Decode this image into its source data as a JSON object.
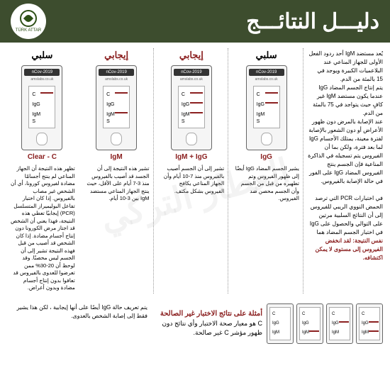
{
  "watermark": "العطار التركي",
  "header": {
    "title": "دليـــل النتائـــج",
    "logo_top": "العطار التركي",
    "logo_bottom": "TÜRK ATTAR"
  },
  "intro": {
    "p1": "يُعد مستضد IgM أحد ردود الفعل الأولى للجهاز المناعي عند البلاعميات الكبيرة ويوجد في 15 بالمئة من الدم.",
    "p2": "يتم إنتاج الجسم المضاد IgG عندما يكون مستضد IgM غير كافٍ حيث يتواجد في 75 بالمئة من الدم.",
    "p3": "عند الإصابة بالمرض دون ظهور الأعراض أو دون الشعور بالإصابة لفترة معينة، يمتلك الأجسام IgG لما بعد فترة، ولكن بما أن الفيروس يتم تسجيله في الذاكرة المناعية فإن الجسم ينتج الفيروس المضاد IgG على الفور في حالة الإصابة بالفيروس.",
    "p4": "في اختبارات PCR التي ترصد الحمض النووي الريبي للفيروس إلى أن النتائج السلبية مرتين على التوالي والحصول على IgG في اختبار الجسم المضاد هما",
    "p5": "نفس النتيجة: لقد انخفض الفيروس إلى مستوى لا يمكن اكتشافه."
  },
  "columns": [
    {
      "header": "سلبي",
      "positive": false,
      "caption": "IgG",
      "lines": {
        "c": true,
        "igg": true,
        "igm": false
      },
      "desc": "يشير الجسم المضاد IgG أيضًا إلى ظهور الفيروس وتم تطهيره من قبل من الجسم وأن الجسم محصن ضد الفيروس."
    },
    {
      "header": "إيجابي",
      "positive": true,
      "caption": "IgM + IgG",
      "lines": {
        "c": true,
        "igg": true,
        "igm": true
      },
      "desc": "تشير إلى أن الجسم أصيب بالفيروس منذ 7-10 أيام وأن الجهاز المناعي يكافح الفيروس بشكل مكثف."
    },
    {
      "header": "إيجابي",
      "positive": true,
      "caption": "IgM",
      "lines": {
        "c": true,
        "igg": false,
        "igm": true
      },
      "desc": "تشير هذه النتيجة إلى أن الجسد قد أصيب بالفيروس منذ 3-7 أيام على الأقل، حيث ينتج الجهاز المناعي مستضد IgM بين 3-10 أيام."
    },
    {
      "header": "سلبي",
      "positive": false,
      "caption": "Clear - C",
      "lines": {
        "c": true,
        "igg": false,
        "igm": false
      },
      "desc": "تظهر هذه النتيجة أن الجهاز المناعي لم ينتج أجسامًا مضادة لفيروس كورونا، أي أن الشخص غير مصاب بالفيروس. إذا كان اختبار تفاعل البوليميراز المتسلسل (PCR) إيجابيًا تعطي هذه النتيجة، فهذا يعني أن الشخص قد اجتاز مرض الكورونا دون إنتاج أجسام مضادة. إذا كان الشخص قد أصيب من قبل فهذه النتيجة تشير إلى أن الجسم ليس محصنًا. وقد لوحظ أن 20-30% ممن تعرضوا للعدوى بالفيروس قد تعافوا بدون إنتاج أجسام مضادة وبدون أعراض."
    }
  ],
  "device": {
    "title": "2019-nCov",
    "subtitle": "amslabs.co.uk",
    "labels": {
      "c": "C",
      "igg": "IgG",
      "igm": "IgM",
      "s": "S"
    }
  },
  "note": "يتم تعريف حالة IgG أيضًا على أنها إيجابية ، لكن هذا يشير فقط إلى إصابة الشخص بالعدوى.",
  "invalid": {
    "header": "أمثلة على نتائج الاختبار غير الصالحة",
    "text": "C هو معيار صحة الاختبار وأي نتائج دون ظهور مؤشر C غير صالحة.",
    "examples": [
      {
        "c": false,
        "igg": true,
        "igm": true
      },
      {
        "c": false,
        "igg": true,
        "igm": false
      },
      {
        "c": false,
        "igg": false,
        "igm": true
      },
      {
        "c": false,
        "igg": false,
        "igm": false
      }
    ]
  }
}
